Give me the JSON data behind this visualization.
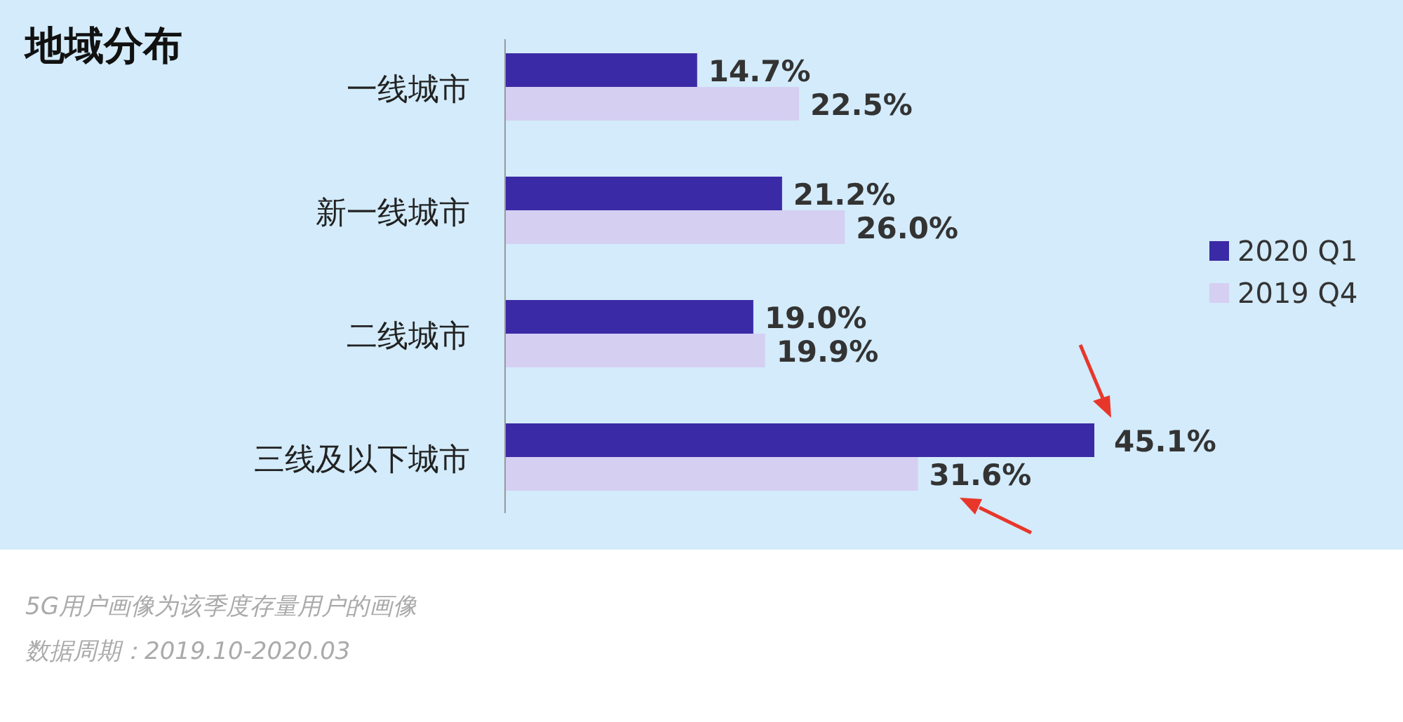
{
  "chart_data": {
    "type": "bar",
    "orientation": "horizontal",
    "title": "地域分布",
    "categories": [
      "一线城市",
      "新一线城市",
      "二线城市",
      "三线及以下城市"
    ],
    "series": [
      {
        "name": "2020 Q1",
        "color": "#3b2aa6",
        "values": [
          14.7,
          21.2,
          19.0,
          45.1
        ],
        "value_labels": [
          "14.7%",
          "21.2%",
          "19.0%",
          "45.1%"
        ]
      },
      {
        "name": "2019 Q4",
        "color": "#d5cff2",
        "values": [
          22.5,
          26.0,
          19.9,
          31.6
        ],
        "value_labels": [
          "22.5%",
          "26.0%",
          "19.9%",
          "31.6%"
        ]
      }
    ],
    "legend": "right",
    "annotations": [
      "5G用户画像为该季度存量用户的画像",
      "数据周期：2019.10-2020.03"
    ]
  }
}
